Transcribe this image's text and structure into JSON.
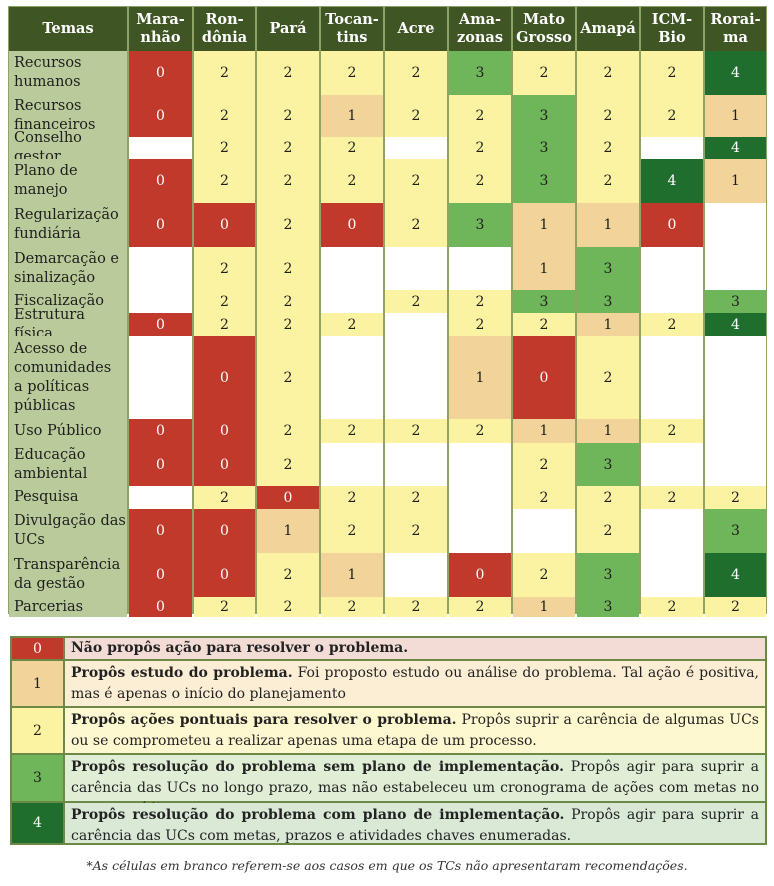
{
  "colors": {
    "0": "#c0392b",
    "1": "#f2d49a",
    "2": "#fbf3a1",
    "3": "#6fb55a",
    "4": "#1f6e2d",
    "blank": "#ffffff",
    "header": "#3f5524",
    "rowlabel": "#b9cb9a"
  },
  "matrix": {
    "corner_label": "Temas",
    "columns": [
      "Mara-\nnhão",
      "Ron-\ndônia",
      "Pará",
      "Tocan-\ntins",
      "Acre",
      "Ama-\nzonas",
      "Mato\nGrosso",
      "Amapá",
      "ICM-\nBio",
      "Rorai-\nma"
    ],
    "rows": [
      {
        "label": "Recursos\nhumanos",
        "values": [
          "0",
          "2",
          "2",
          "2",
          "2",
          "3",
          "2",
          "2",
          "2",
          "4"
        ]
      },
      {
        "label": "Recursos\nfinanceiros",
        "values": [
          "0",
          "2",
          "2",
          "1",
          "2",
          "2",
          "3",
          "2",
          "2",
          "1"
        ]
      },
      {
        "label": "Conselho gestor",
        "values": [
          "",
          "2",
          "2",
          "2",
          "",
          "2",
          "3",
          "2",
          "",
          "4"
        ]
      },
      {
        "label": "Plano de\nmanejo",
        "values": [
          "0",
          "2",
          "2",
          "2",
          "2",
          "2",
          "3",
          "2",
          "4",
          "1"
        ]
      },
      {
        "label": "Regularização\nfundiária",
        "values": [
          "0",
          "0",
          "2",
          "0",
          "2",
          "3",
          "1",
          "1",
          "0",
          ""
        ]
      },
      {
        "label": "Demarcação e\nsinalização",
        "values": [
          "",
          "2",
          "2",
          "",
          "",
          "",
          "1",
          "3",
          "",
          ""
        ]
      },
      {
        "label": "Fiscalização",
        "values": [
          "",
          "2",
          "2",
          "",
          "2",
          "2",
          "3",
          "3",
          "",
          "3"
        ]
      },
      {
        "label": "Estrutura física",
        "values": [
          "0",
          "2",
          "2",
          "2",
          "",
          "2",
          "2",
          "1",
          "2",
          "4"
        ]
      },
      {
        "label": "Acesso de\ncomunidades\na políticas\npúblicas",
        "values": [
          "",
          "0",
          "2",
          "",
          "",
          "1",
          "0",
          "2",
          "",
          ""
        ]
      },
      {
        "label": "Uso Público",
        "values": [
          "0",
          "0",
          "2",
          "2",
          "2",
          "2",
          "1",
          "1",
          "2",
          ""
        ]
      },
      {
        "label": "Educação\nambiental",
        "values": [
          "0",
          "0",
          "2",
          "",
          "",
          "",
          "2",
          "3",
          "",
          ""
        ]
      },
      {
        "label": "Pesquisa",
        "values": [
          "",
          "2",
          "0",
          "2",
          "2",
          "",
          "2",
          "2",
          "2",
          "2"
        ]
      },
      {
        "label": "Divulgação das\nUCs",
        "values": [
          "0",
          "0",
          "1",
          "2",
          "2",
          "",
          "",
          "2",
          "",
          "3"
        ]
      },
      {
        "label": "Transparência\nda gestão",
        "values": [
          "0",
          "0",
          "2",
          "1",
          "",
          "0",
          "2",
          "3",
          "",
          "4"
        ]
      },
      {
        "label": "Parcerias",
        "values": [
          "0",
          "2",
          "2",
          "2",
          "2",
          "2",
          "1",
          "3",
          "2",
          "2"
        ]
      }
    ]
  },
  "legend": [
    {
      "code": "0",
      "title": "Não propôs ação para resolver o problema.",
      "text": ""
    },
    {
      "code": "1",
      "title": "Propôs estudo do problema.",
      "text": " Foi proposto estudo ou análise do problema. Tal ação é positiva, mas é apenas o início do planejamento"
    },
    {
      "code": "2",
      "title": "Propôs ações pontuais para resolver o problema.",
      "text": " Propôs suprir a carência de algumas UCs ou se comprometeu a realizar apenas uma etapa de um processo."
    },
    {
      "code": "3",
      "title": "Propôs resolução do problema sem plano de implementação.",
      "text": " Propôs agir para suprir a carência das UCs no longo prazo, mas não estabeleceu um cronograma de ações com metas no curto e médio prazos."
    },
    {
      "code": "4",
      "title": "Propôs resolução do problema com plano de implementação.",
      "text": " Propôs agir para suprir a carência das UCs com metas, prazos e atividades chaves enumeradas."
    }
  ],
  "footnote": "*As células em branco referem-se aos casos em que os TCs não apresentaram recomendações."
}
